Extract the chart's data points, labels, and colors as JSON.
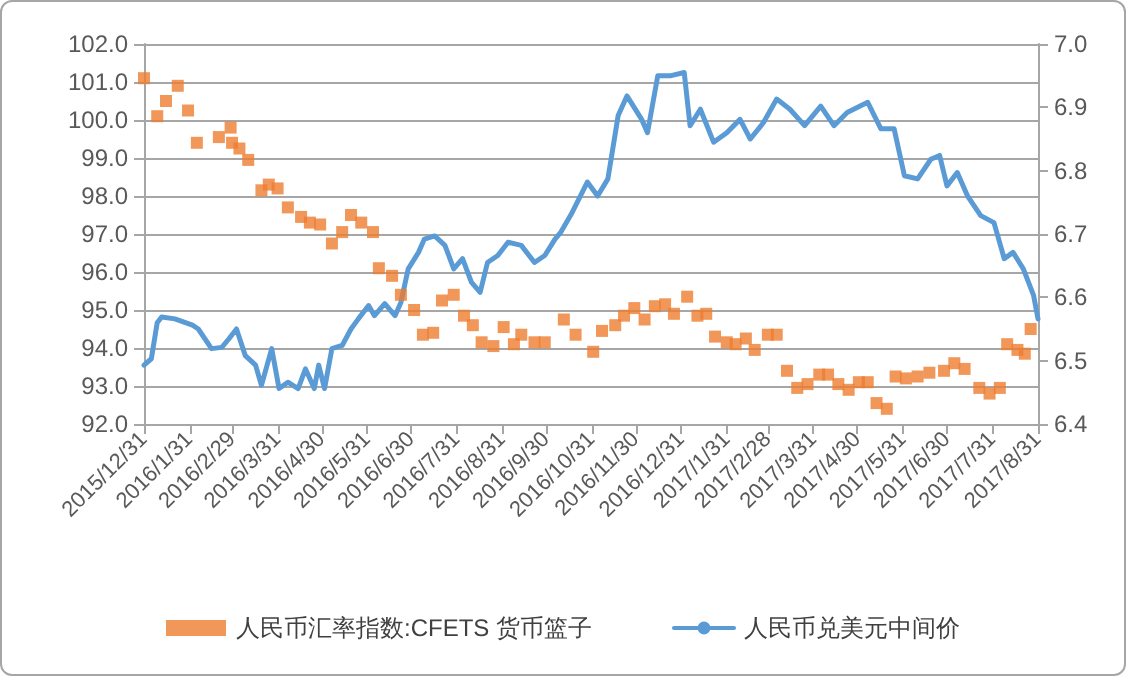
{
  "chart_data": {
    "type": "scatter",
    "xlim": [
      "2015-12-31",
      "2017-08-31"
    ],
    "xticks": [
      {
        "value": "2015-12-31",
        "label": "2015/12/31"
      },
      {
        "value": "2016-01-31",
        "label": "2016/1/31"
      },
      {
        "value": "2016-02-29",
        "label": "2016/2/29"
      },
      {
        "value": "2016-03-31",
        "label": "2016/3/31"
      },
      {
        "value": "2016-04-30",
        "label": "2016/4/30"
      },
      {
        "value": "2016-05-31",
        "label": "2016/5/31"
      },
      {
        "value": "2016-06-30",
        "label": "2016/6/30"
      },
      {
        "value": "2016-07-31",
        "label": "2016/7/31"
      },
      {
        "value": "2016-08-31",
        "label": "2016/8/31"
      },
      {
        "value": "2016-09-30",
        "label": "2016/9/30"
      },
      {
        "value": "2016-10-31",
        "label": "2016/10/31"
      },
      {
        "value": "2016-11-30",
        "label": "2016/11/30"
      },
      {
        "value": "2016-12-31",
        "label": "2016/12/31"
      },
      {
        "value": "2017-01-31",
        "label": "2017/1/31"
      },
      {
        "value": "2017-02-28",
        "label": "2017/2/28"
      },
      {
        "value": "2017-03-31",
        "label": "2017/3/31"
      },
      {
        "value": "2017-04-30",
        "label": "2017/4/30"
      },
      {
        "value": "2017-05-31",
        "label": "2017/5/31"
      },
      {
        "value": "2017-06-30",
        "label": "2017/6/30"
      },
      {
        "value": "2017-07-31",
        "label": "2017/7/31"
      },
      {
        "value": "2017-08-31",
        "label": "2017/8/31"
      }
    ],
    "ylim": [
      92,
      102
    ],
    "yticks": [
      {
        "value": 92,
        "label": "92.0"
      },
      {
        "value": 93,
        "label": "93.0"
      },
      {
        "value": 94,
        "label": "94.0"
      },
      {
        "value": 95,
        "label": "95.0"
      },
      {
        "value": 96,
        "label": "96.0"
      },
      {
        "value": 97,
        "label": "97.0"
      },
      {
        "value": 98,
        "label": "98.0"
      },
      {
        "value": 99,
        "label": "99.0"
      },
      {
        "value": 100,
        "label": "100.0"
      },
      {
        "value": 101,
        "label": "101.0"
      },
      {
        "value": 102,
        "label": "102.0"
      }
    ],
    "y2lim": [
      6.4,
      7.0
    ],
    "y2ticks": [
      {
        "value": 6.4,
        "label": "6.4"
      },
      {
        "value": 6.5,
        "label": "6.5"
      },
      {
        "value": 6.6,
        "label": "6.6"
      },
      {
        "value": 6.7,
        "label": "6.7"
      },
      {
        "value": 6.8,
        "label": "6.8"
      },
      {
        "value": 6.9,
        "label": "6.9"
      },
      {
        "value": 7.0,
        "label": "7.0"
      }
    ],
    "grid": "y",
    "legend": "bottom",
    "series": [
      {
        "name": "人民币汇率指数:CFETS 货币篮子",
        "marker": "square",
        "color": "#ed7d31",
        "x": [
          "2015-12-31",
          "2016-01-09",
          "2016-01-15",
          "2016-01-23",
          "2016-01-30",
          "2016-02-05",
          "2016-02-20",
          "2016-02-28",
          "2016-02-29",
          "2016-03-05",
          "2016-03-11",
          "2016-03-20",
          "2016-03-25",
          "2016-03-31",
          "2016-04-07",
          "2016-04-16",
          "2016-04-22",
          "2016-04-29",
          "2016-05-07",
          "2016-05-14",
          "2016-05-20",
          "2016-05-27",
          "2016-06-04",
          "2016-06-08",
          "2016-06-17",
          "2016-06-23",
          "2016-07-02",
          "2016-07-08",
          "2016-07-15",
          "2016-07-21",
          "2016-07-29",
          "2016-08-05",
          "2016-08-11",
          "2016-08-17",
          "2016-08-25",
          "2016-09-01",
          "2016-09-08",
          "2016-09-13",
          "2016-09-22",
          "2016-09-29",
          "2016-10-12",
          "2016-10-20",
          "2016-11-01",
          "2016-11-07",
          "2016-11-16",
          "2016-11-22",
          "2016-11-29",
          "2016-12-06",
          "2016-12-13",
          "2016-12-20",
          "2016-12-26",
          "2017-01-04",
          "2017-01-11",
          "2017-01-17",
          "2017-01-23",
          "2017-01-31",
          "2017-02-06",
          "2017-02-13",
          "2017-02-19",
          "2017-02-28",
          "2017-03-06",
          "2017-03-13",
          "2017-03-20",
          "2017-03-27",
          "2017-04-04",
          "2017-04-10",
          "2017-04-17",
          "2017-04-24",
          "2017-05-01",
          "2017-05-07",
          "2017-05-13",
          "2017-05-20",
          "2017-05-26",
          "2017-06-02",
          "2017-06-10",
          "2017-06-18",
          "2017-06-28",
          "2017-07-05",
          "2017-07-12",
          "2017-07-22",
          "2017-07-29",
          "2017-08-05",
          "2017-08-10",
          "2017-08-17",
          "2017-08-22",
          "2017-08-26"
        ],
        "values": [
          101.1,
          100.1,
          100.5,
          100.9,
          100.25,
          99.4,
          99.55,
          99.8,
          99.4,
          99.25,
          98.95,
          98.15,
          98.3,
          98.2,
          97.7,
          97.45,
          97.3,
          97.25,
          96.75,
          97.05,
          97.5,
          97.3,
          97.05,
          96.1,
          95.9,
          95.4,
          95.0,
          94.35,
          94.4,
          95.25,
          95.4,
          94.85,
          94.6,
          94.15,
          94.05,
          94.55,
          94.1,
          94.35,
          94.15,
          94.15,
          94.75,
          94.35,
          93.9,
          94.45,
          94.6,
          94.85,
          95.05,
          94.75,
          95.1,
          95.15,
          94.9,
          95.35,
          94.85,
          94.9,
          94.3,
          94.15,
          94.1,
          94.25,
          93.95,
          94.35,
          94.35,
          93.4,
          92.95,
          93.05,
          93.3,
          93.3,
          93.05,
          92.9,
          93.1,
          93.1,
          92.55,
          92.4,
          93.25,
          93.2,
          93.25,
          93.35,
          93.4,
          93.6,
          93.45,
          92.95,
          92.8,
          92.95,
          94.1,
          93.95,
          93.85,
          94.5
        ]
      },
      {
        "name": "人民币兑美元中间价",
        "type": "line",
        "axis": "y2",
        "marker": "none",
        "line_style": "solid",
        "color": "#5b9bd5",
        "x": [
          "2015-12-31",
          "2016-01-05",
          "2016-01-09",
          "2016-01-12",
          "2016-01-21",
          "2016-02-02",
          "2016-02-06",
          "2016-02-15",
          "2016-02-22",
          "2016-02-27",
          "2016-03-03",
          "2016-03-09",
          "2016-03-16",
          "2016-03-20",
          "2016-03-27",
          "2016-04-01",
          "2016-04-07",
          "2016-04-14",
          "2016-04-19",
          "2016-04-25",
          "2016-04-28",
          "2016-05-02",
          "2016-05-07",
          "2016-05-14",
          "2016-05-20",
          "2016-05-25",
          "2016-06-01",
          "2016-06-05",
          "2016-06-12",
          "2016-06-19",
          "2016-06-23",
          "2016-06-28",
          "2016-07-05",
          "2016-07-09",
          "2016-07-16",
          "2016-07-23",
          "2016-07-29",
          "2016-08-04",
          "2016-08-10",
          "2016-08-16",
          "2016-08-21",
          "2016-08-28",
          "2016-09-04",
          "2016-09-13",
          "2016-09-22",
          "2016-09-29",
          "2016-10-06",
          "2016-10-10",
          "2016-10-17",
          "2016-10-28",
          "2016-11-04",
          "2016-11-11",
          "2016-11-18",
          "2016-11-24",
          "2016-12-04",
          "2016-12-08",
          "2016-12-15",
          "2016-12-24",
          "2017-01-02",
          "2017-01-06",
          "2017-01-13",
          "2017-01-22",
          "2017-01-31",
          "2017-02-09",
          "2017-02-16",
          "2017-02-25",
          "2017-03-06",
          "2017-03-15",
          "2017-03-25",
          "2017-04-05",
          "2017-04-14",
          "2017-04-23",
          "2017-05-07",
          "2017-05-16",
          "2017-05-25",
          "2017-06-01",
          "2017-06-10",
          "2017-06-19",
          "2017-06-25",
          "2017-06-30",
          "2017-07-07",
          "2017-07-14",
          "2017-07-23",
          "2017-08-01",
          "2017-08-08",
          "2017-08-14",
          "2017-08-21",
          "2017-08-28",
          "2017-08-31"
        ],
        "values": [
          6.493,
          6.503,
          6.56,
          6.569,
          6.566,
          6.556,
          6.55,
          6.519,
          6.521,
          6.535,
          6.55,
          6.508,
          6.493,
          6.461,
          6.519,
          6.456,
          6.466,
          6.456,
          6.487,
          6.456,
          6.493,
          6.456,
          6.519,
          6.524,
          6.55,
          6.566,
          6.587,
          6.571,
          6.59,
          6.571,
          6.592,
          6.645,
          6.671,
          6.692,
          6.697,
          6.682,
          6.645,
          6.661,
          6.624,
          6.608,
          6.655,
          6.666,
          6.687,
          6.682,
          6.655,
          6.666,
          6.692,
          6.703,
          6.731,
          6.782,
          6.76,
          6.787,
          6.887,
          6.918,
          6.881,
          6.86,
          6.95,
          6.95,
          6.955,
          6.871,
          6.897,
          6.845,
          6.86,
          6.881,
          6.85,
          6.876,
          6.913,
          6.897,
          6.871,
          6.902,
          6.871,
          6.892,
          6.908,
          6.866,
          6.866,
          6.792,
          6.787,
          6.818,
          6.824,
          6.776,
          6.797,
          6.76,
          6.729,
          6.718,
          6.661,
          6.671,
          6.645,
          6.603,
          6.566
        ]
      }
    ]
  }
}
